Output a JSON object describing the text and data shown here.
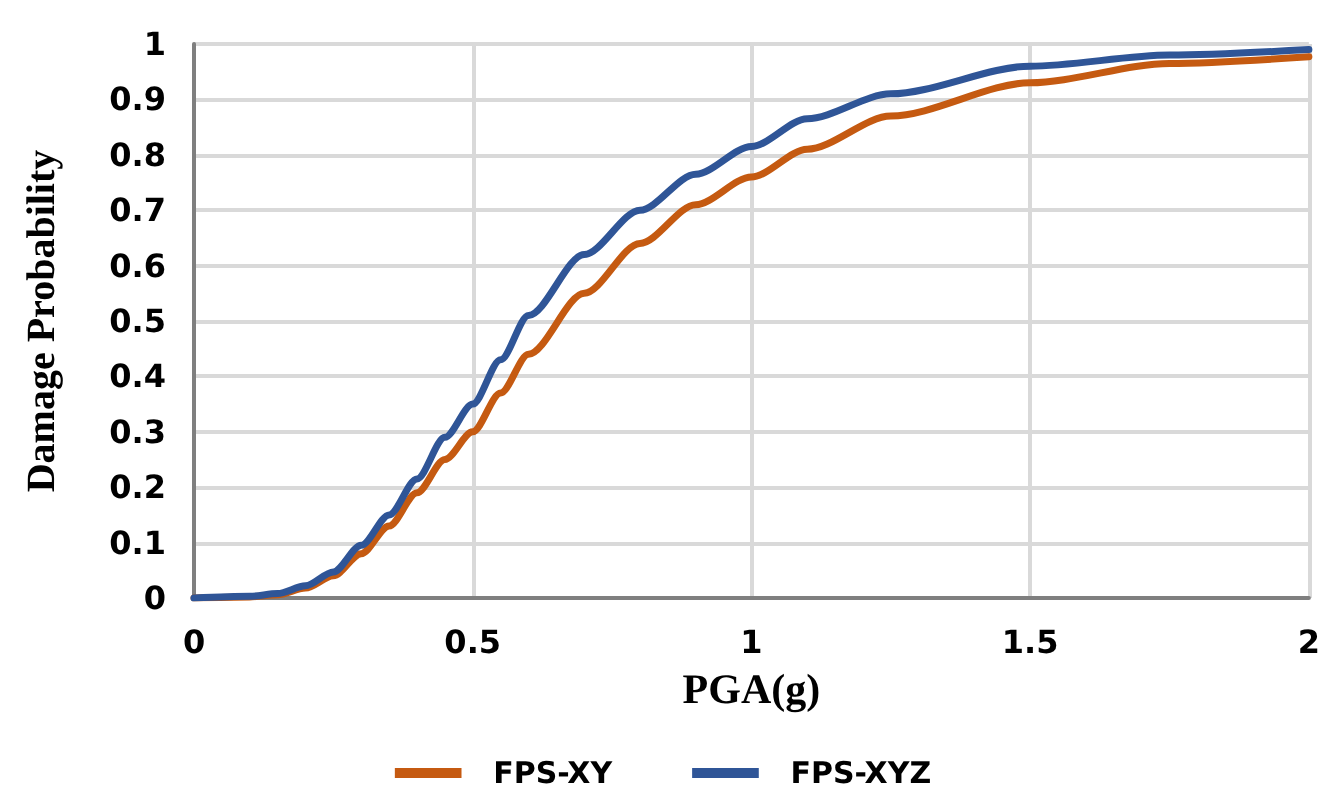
{
  "chart_data": {
    "type": "line",
    "xlabel": "PGA(g)",
    "ylabel": "Damage Probability",
    "x": [
      0,
      0.1,
      0.15,
      0.2,
      0.25,
      0.3,
      0.35,
      0.4,
      0.45,
      0.5,
      0.55,
      0.6,
      0.7,
      0.8,
      0.9,
      1,
      1.1,
      1.25,
      1.5,
      1.75,
      2
    ],
    "series": [
      {
        "name": "FPS-XY",
        "color": "#c55a11",
        "values": [
          0,
          0.002,
          0.006,
          0.018,
          0.04,
          0.08,
          0.13,
          0.19,
          0.25,
          0.3,
          0.37,
          0.44,
          0.55,
          0.64,
          0.71,
          0.76,
          0.81,
          0.87,
          0.93,
          0.965,
          0.977
        ]
      },
      {
        "name": "FPS-XYZ",
        "color": "#2f5597",
        "values": [
          0,
          0.003,
          0.008,
          0.022,
          0.047,
          0.095,
          0.15,
          0.215,
          0.29,
          0.35,
          0.43,
          0.51,
          0.62,
          0.7,
          0.765,
          0.815,
          0.865,
          0.91,
          0.96,
          0.98,
          0.99
        ]
      }
    ],
    "xlim": [
      0,
      2
    ],
    "xticks": [
      0,
      0.5,
      1,
      1.5,
      2
    ],
    "ylim": [
      0,
      1
    ],
    "yticks": [
      0,
      0.1,
      0.2,
      0.3,
      0.4,
      0.5,
      0.6,
      0.7,
      0.8,
      0.9,
      1
    ],
    "grid": true,
    "legend": "bottom",
    "marker": "none",
    "line_style": "solid"
  }
}
